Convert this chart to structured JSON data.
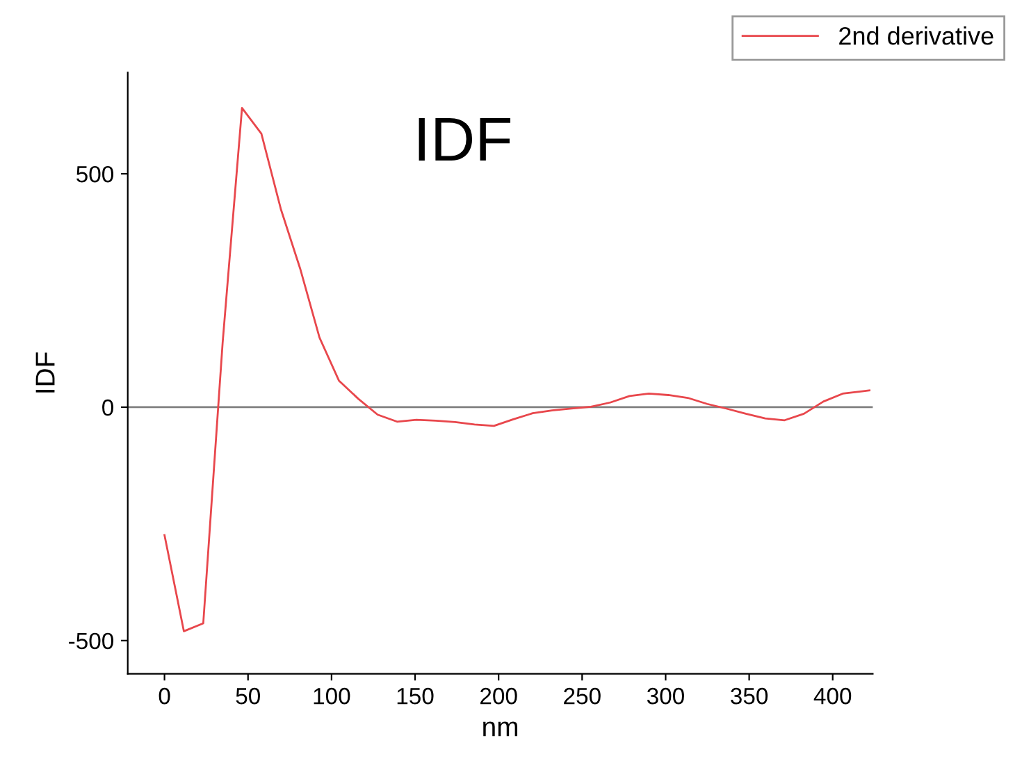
{
  "chart_data": {
    "type": "line",
    "title": "IDF",
    "xlabel": "nm",
    "ylabel": "IDF",
    "xlim": [
      -22,
      424
    ],
    "xticks": [
      0,
      50,
      100,
      150,
      200,
      250,
      300,
      350,
      400
    ],
    "ylim": [
      -571,
      717
    ],
    "yticks": [
      -500,
      0,
      500
    ],
    "grid": false,
    "legend": "top right",
    "marker": "none",
    "line_style": "solid",
    "ref_lines": [
      {
        "axis": "y",
        "value": 0,
        "color": "#808080"
      }
    ],
    "series": [
      {
        "name": "2nd derivative",
        "color": "#e8474c",
        "x": [
          0,
          11.6,
          23.2,
          34.8,
          46.4,
          58,
          69.6,
          81.2,
          92.8,
          104.4,
          116,
          127.6,
          139.2,
          150.8,
          162.4,
          174,
          185.6,
          197.2,
          208.8,
          220.4,
          232,
          243.6,
          255.2,
          266.8,
          278.4,
          290,
          301.6,
          313.2,
          324.8,
          336.4,
          348,
          359.6,
          371.2,
          382.8,
          394.4,
          406,
          417.6,
          422
        ],
        "values": [
          -274,
          -480,
          -463,
          138,
          641,
          586,
          425,
          297,
          149,
          57,
          18,
          -16,
          -31,
          -27,
          -29,
          -32,
          -37,
          -40,
          -26,
          -13,
          -7,
          -3,
          1,
          10,
          24,
          29,
          26,
          20,
          7,
          -3,
          -14,
          -24,
          -28,
          -14,
          12,
          29,
          34,
          36
        ]
      }
    ]
  }
}
